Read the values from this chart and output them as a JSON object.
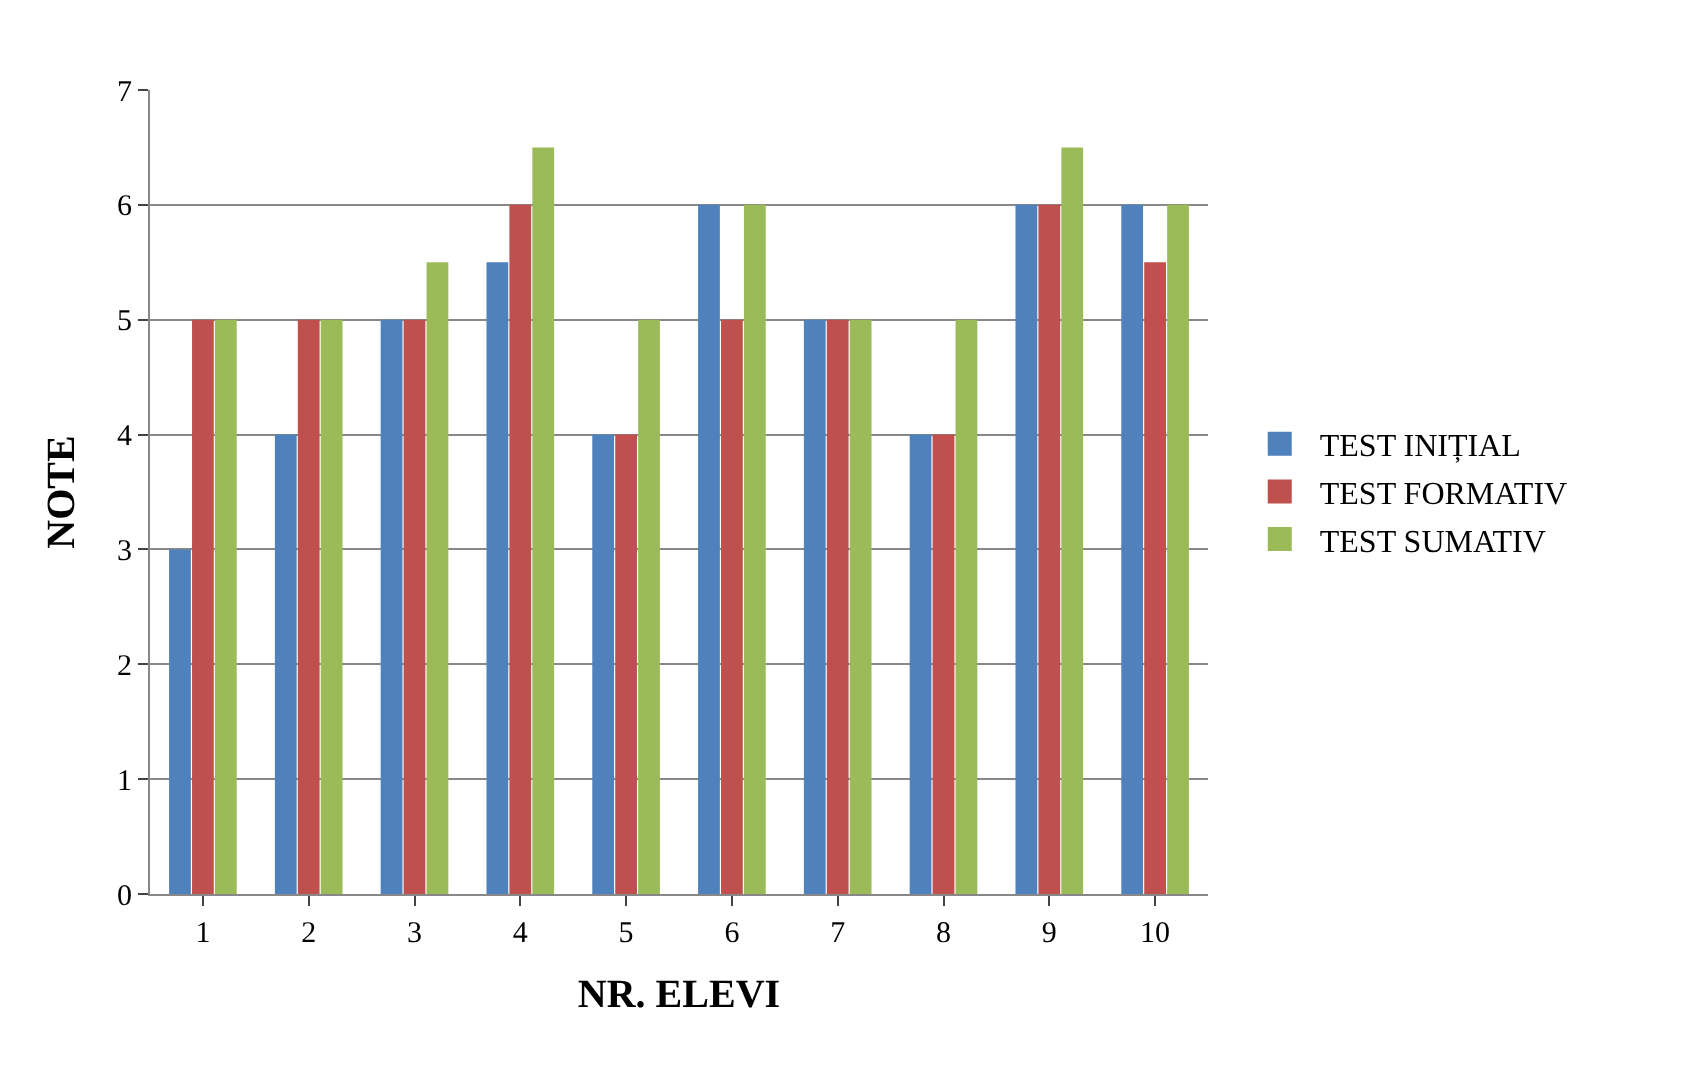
{
  "chart_data": {
    "type": "bar",
    "xlabel": "NR. ELEVI",
    "ylabel": "NOTE",
    "categories": [
      "1",
      "2",
      "3",
      "4",
      "5",
      "6",
      "7",
      "8",
      "9",
      "10"
    ],
    "series": [
      {
        "name": "TEST INIȚIAL",
        "color": "#4f81bd",
        "values": [
          3,
          4,
          5,
          5.5,
          4,
          6,
          5,
          4,
          6,
          6
        ]
      },
      {
        "name": "TEST FORMATIV",
        "color": "#c0504d",
        "values": [
          5,
          5,
          5,
          6,
          4,
          5,
          5,
          4,
          6,
          5.5
        ]
      },
      {
        "name": "TEST SUMATIV",
        "color": "#9bbb59",
        "values": [
          5,
          5,
          5.5,
          6.5,
          5,
          6,
          5,
          5,
          6.5,
          6
        ]
      }
    ],
    "ylim": [
      0,
      7
    ],
    "yticks": [
      0,
      1,
      2,
      3,
      4,
      5,
      6,
      7
    ],
    "grid": "y",
    "legend": "right"
  }
}
